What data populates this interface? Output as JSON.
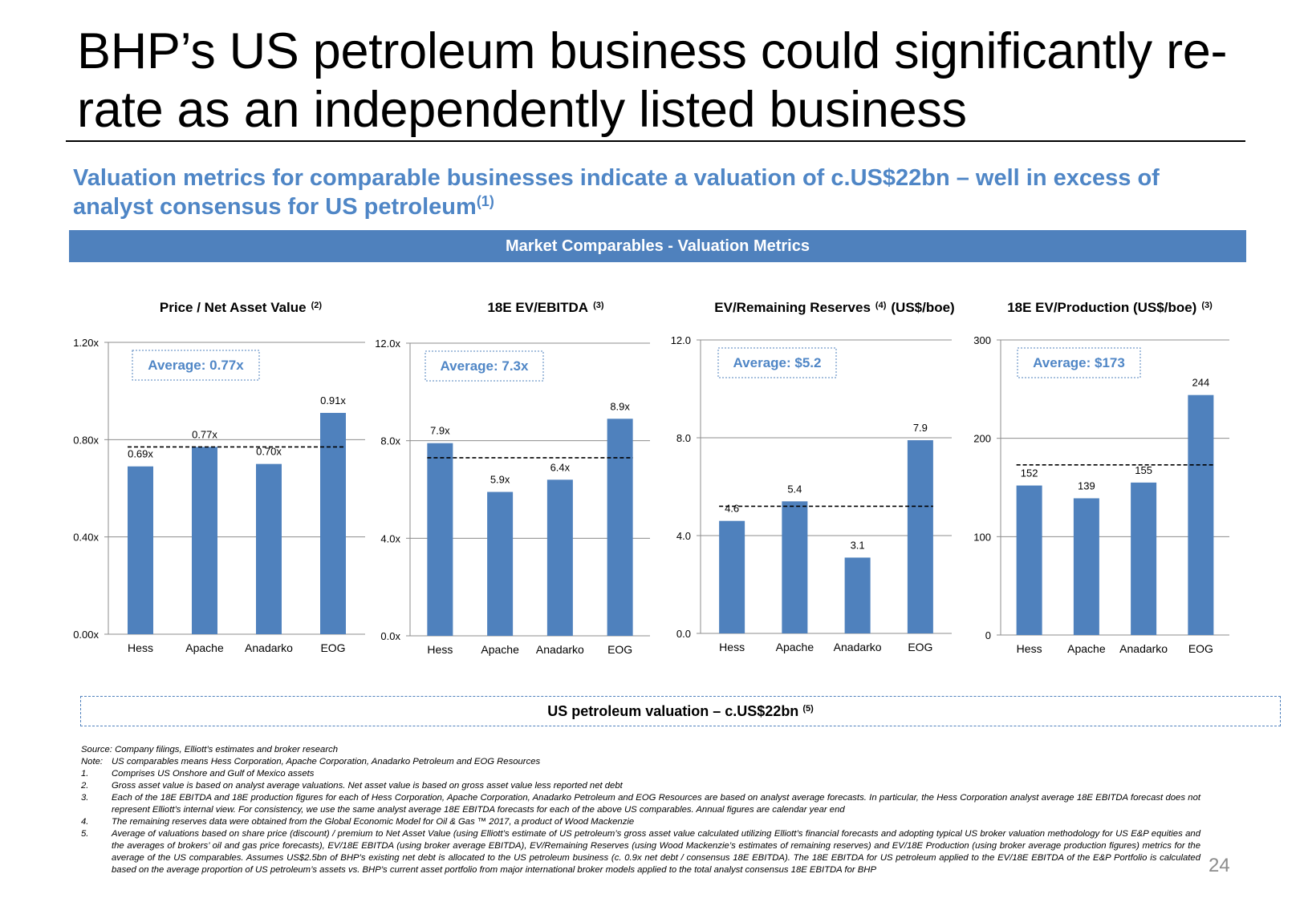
{
  "title": "BHP’s US petroleum business could significantly re-rate as an independently listed business",
  "subtitle": {
    "text": "Valuation metrics for comparable businesses indicate a valuation of c.US$22bn – well in excess of analyst consensus for US petroleum",
    "footnote_ref": "(1)"
  },
  "banner": "Market Comparables - Valuation Metrics",
  "colors": {
    "accent": "#4f81bd",
    "subtitle": "#4f86c6",
    "grid": "#8c8c8c",
    "average_line": "#000000"
  },
  "chart_data": [
    {
      "type": "bar",
      "title": "Price / Net Asset Value",
      "title_sup": "(2)",
      "categories": [
        "Hess",
        "Apache",
        "Anadarko",
        "EOG"
      ],
      "values": [
        0.69,
        0.77,
        0.7,
        0.91
      ],
      "value_labels": [
        "0.69x",
        "0.77x",
        "0.70x",
        "0.91x"
      ],
      "ylim": [
        0,
        1.2
      ],
      "yticks": [
        0,
        0.4,
        0.8,
        1.2
      ],
      "ytick_labels": [
        "0.00x",
        "0.40x",
        "0.80x",
        "1.20x"
      ],
      "average": 0.77,
      "average_label": "Average: 0.77x",
      "grid": true
    },
    {
      "type": "bar",
      "title": "18E EV/EBITDA",
      "title_sup": "(3)",
      "categories": [
        "Hess",
        "Apache",
        "Anadarko",
        "EOG"
      ],
      "values": [
        7.9,
        5.9,
        6.4,
        8.9
      ],
      "value_labels": [
        "7.9x",
        "5.9x",
        "6.4x",
        "8.9x"
      ],
      "ylim": [
        0,
        12
      ],
      "yticks": [
        0,
        4,
        8,
        12
      ],
      "ytick_labels": [
        "0.0x",
        "4.0x",
        "8.0x",
        "12.0x"
      ],
      "average": 7.3,
      "average_label": "Average: 7.3x",
      "grid": true
    },
    {
      "type": "bar",
      "title": "EV/Remaining Reserves",
      "title_sup": "(4)",
      "title_suffix": "(US$/boe)",
      "categories": [
        "Hess",
        "Apache",
        "Anadarko",
        "EOG"
      ],
      "values": [
        4.6,
        5.4,
        3.1,
        7.9
      ],
      "value_labels": [
        "4.6",
        "5.4",
        "3.1",
        "7.9"
      ],
      "ylim": [
        0,
        12
      ],
      "yticks": [
        0,
        4,
        8,
        12
      ],
      "ytick_labels": [
        "0.0",
        "4.0",
        "8.0",
        "12.0"
      ],
      "average": 5.2,
      "average_label": "Average: $5.2",
      "grid": true
    },
    {
      "type": "bar",
      "title": "18E EV/Production (US$/boe)",
      "title_sup": "(3)",
      "categories": [
        "Hess",
        "Apache",
        "Anadarko",
        "EOG"
      ],
      "values": [
        152,
        139,
        155,
        244
      ],
      "value_labels": [
        "152",
        "139",
        "155",
        "244"
      ],
      "ylim": [
        0,
        300
      ],
      "yticks": [
        0,
        100,
        200,
        300
      ],
      "ytick_labels": [
        "0",
        "100",
        "200",
        "300"
      ],
      "average": 173,
      "average_label": "Average: $173",
      "grid": true
    }
  ],
  "valuation_box": {
    "text": "US petroleum valuation – c.US$22bn",
    "footnote_ref": "(5)"
  },
  "notes": [
    {
      "num": "",
      "text": "Source: Company filings, Elliott’s estimates and broker research"
    },
    {
      "num": "Note:",
      "text": "US comparables means Hess Corporation, Apache Corporation, Anadarko Petroleum and EOG Resources"
    },
    {
      "num": "1.",
      "text": "Comprises US Onshore and Gulf of Mexico assets"
    },
    {
      "num": "2.",
      "text": "Gross asset value is based on analyst average valuations. Net asset value is based on gross asset value less reported net debt"
    },
    {
      "num": "3.",
      "text": "Each of the 18E EBITDA and 18E production figures for each of Hess Corporation, Apache Corporation, Anadarko Petroleum and EOG Resources are based on analyst average forecasts. In particular, the Hess Corporation analyst average 18E EBITDA forecast does not represent Elliott’s internal view. For consistency, we use the same analyst average 18E EBITDA forecasts for each of the above US comparables. Annual figures are calendar year end"
    },
    {
      "num": "4.",
      "text": "The remaining reserves data were obtained from the Global Economic Model for Oil & Gas ™ 2017, a product of Wood Mackenzie"
    },
    {
      "num": "5.",
      "text": "Average of valuations based on share price (discount) / premium to Net Asset Value (using Elliott’s estimate of US petroleum’s gross asset value calculated utilizing Elliott’s financial forecasts and adopting typical US broker valuation methodology for US E&P equities and the averages of brokers’ oil and gas price forecasts), EV/18E EBITDA (using broker average EBITDA), EV/Remaining Reserves (using Wood Mackenzie’s estimates of remaining reserves) and EV/18E Production (using broker average production figures) metrics for the average of the US comparables. Assumes US$2.5bn of BHP’s existing net debt is allocated to the US petroleum business (c. 0.9x net debt / consensus 18E EBITDA). The 18E EBITDA for US petroleum applied to the EV/18E EBITDA of the E&P Portfolio is calculated based on the average proportion of US petroleum’s assets vs. BHP’s current asset portfolio from major international broker models applied to the total analyst consensus 18E EBITDA for BHP"
    }
  ],
  "page_number": "24"
}
